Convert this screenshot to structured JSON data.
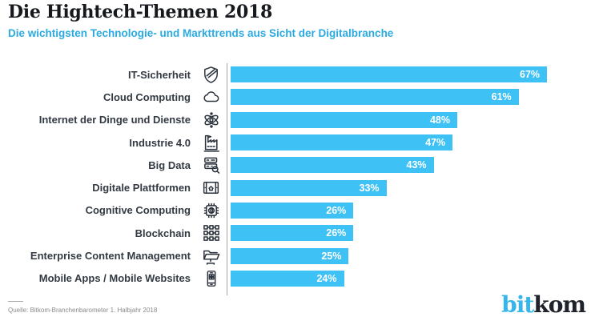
{
  "header": {
    "title": "Die Hightech-Themen 2018",
    "subtitle": "Die wichtigsten Technologie- und Markttrends aus Sicht der Digitalbranche"
  },
  "chart_data": {
    "type": "bar",
    "orientation": "horizontal",
    "title": "Die Hightech-Themen 2018",
    "subtitle": "Die wichtigsten Technologie- und Markttrends aus Sicht der Digitalbranche",
    "categories": [
      "IT-Sicherheit",
      "Cloud Computing",
      "Internet der Dinge und Dienste",
      "Industrie 4.0",
      "Big Data",
      "Digitale Plattformen",
      "Cognitive Computing",
      "Blockchain",
      "Enterprise Content Management",
      "Mobile Apps / Mobile Websites"
    ],
    "values": [
      67,
      61,
      48,
      47,
      43,
      33,
      26,
      26,
      25,
      24
    ],
    "value_labels": [
      "67%",
      "61%",
      "48%",
      "47%",
      "43%",
      "33%",
      "26%",
      "26%",
      "25%",
      "24%"
    ],
    "icons": [
      "shield-icon",
      "cloud-icon",
      "atom-icon",
      "factory-icon",
      "server-search-icon",
      "tablet-home-icon",
      "chip-brain-icon",
      "blockchain-icon",
      "folder-icon",
      "smartphone-icon"
    ],
    "unit": "%",
    "xlim": [
      0,
      77
    ],
    "grid": false,
    "legend": false,
    "bar_color": "#3ec1f5",
    "value_label_color": "#ffffff",
    "axis_line_color": "#a3a3a3"
  },
  "footer": {
    "source": "Quelle: Bitkom-Branchenbarometer 1. Halbjahr 2018",
    "logo": {
      "bit": "bit",
      "kom": "kom",
      "bit_color": "#36b6ea",
      "kom_color": "#1d222b"
    }
  },
  "colors": {
    "title": "#15181d",
    "subtitle": "#2baae1",
    "category_label": "#333a43",
    "bar": "#3ec1f5"
  }
}
